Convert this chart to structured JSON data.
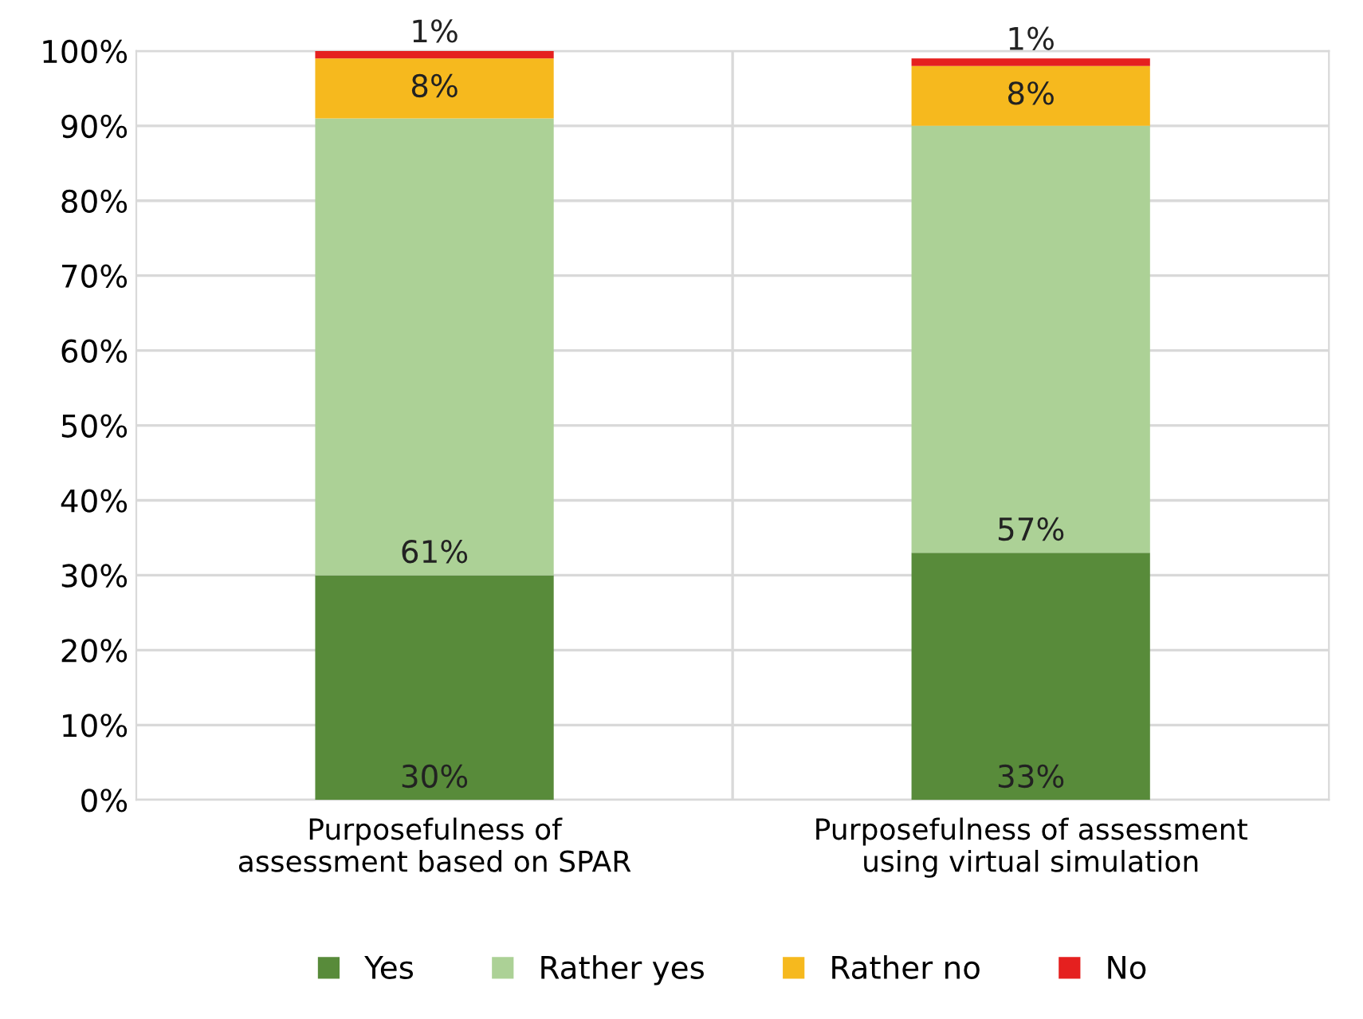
{
  "chart_data": {
    "type": "bar",
    "stacked": true,
    "categories": [
      "Purposefulness of\nassessment based on SPAR",
      "Purposefulness of assessment\nusing virtual simulation"
    ],
    "series": [
      {
        "name": "Yes",
        "color": "#588b3a",
        "values": [
          30,
          33
        ],
        "value_labels": [
          "30%",
          "33%"
        ]
      },
      {
        "name": "Rather yes",
        "color": "#acd196",
        "values": [
          61,
          57
        ],
        "value_labels": [
          "61%",
          "57%"
        ]
      },
      {
        "name": "Rather no",
        "color": "#f6b91e",
        "values": [
          8,
          8
        ],
        "value_labels": [
          "8%",
          "8%"
        ]
      },
      {
        "name": "No",
        "color": "#e5201f",
        "values": [
          1,
          1
        ],
        "value_labels": [
          "1%",
          "1%"
        ]
      }
    ],
    "ylim": [
      0,
      100
    ],
    "yticks": [
      {
        "value": 0,
        "label": "0%"
      },
      {
        "value": 10,
        "label": "10%"
      },
      {
        "value": 20,
        "label": "20%"
      },
      {
        "value": 30,
        "label": "30%"
      },
      {
        "value": 40,
        "label": "40%"
      },
      {
        "value": 50,
        "label": "50%"
      },
      {
        "value": 60,
        "label": "60%"
      },
      {
        "value": 70,
        "label": "70%"
      },
      {
        "value": 80,
        "label": "80%"
      },
      {
        "value": 90,
        "label": "90%"
      },
      {
        "value": 100,
        "label": "100%"
      }
    ],
    "grid": true,
    "legend": "bottom"
  }
}
